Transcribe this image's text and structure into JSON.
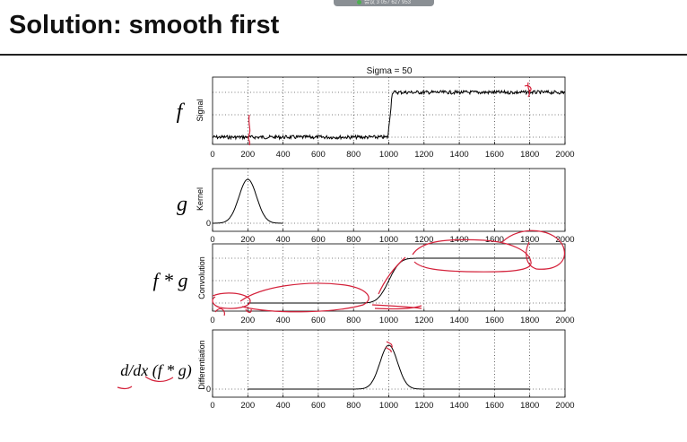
{
  "slide": {
    "title": "Solution: smooth first",
    "overlay_text": "会议 3 057 627 953"
  },
  "chart_data": [
    {
      "type": "line",
      "title": "Sigma = 50",
      "left_label": "f",
      "ylabel": "Signal",
      "xlim": [
        0,
        2000
      ],
      "x_ticks": [
        0,
        200,
        400,
        600,
        800,
        1000,
        1200,
        1400,
        1600,
        1800,
        2000
      ],
      "y_ticks": [],
      "series": [
        {
          "description": "noisy step",
          "x": [
            0,
            995,
            1010,
            2000
          ],
          "y": [
            0,
            0,
            1,
            1
          ]
        }
      ]
    },
    {
      "type": "line",
      "left_label": "g",
      "ylabel": "Kernel",
      "xlim": [
        0,
        2000
      ],
      "x_ticks": [
        0,
        200,
        400,
        600,
        800,
        1000,
        1200,
        1400,
        1600,
        1800,
        2000
      ],
      "y_ticks": [
        "0"
      ],
      "series": [
        {
          "description": "gaussian kernel",
          "x": [
            0,
            400
          ],
          "center": 200,
          "sigma": 50
        }
      ]
    },
    {
      "type": "line",
      "left_label": "f * g",
      "ylabel": "Convolution",
      "xlim": [
        0,
        2000
      ],
      "x_ticks": [
        0,
        200,
        400,
        600,
        800,
        1000,
        1200,
        1400,
        1600,
        1800,
        2000
      ],
      "y_ticks": [],
      "series": [
        {
          "description": "smoothed step",
          "x": [
            200,
            1800
          ],
          "edge": 1000,
          "sigma": 50
        }
      ]
    },
    {
      "type": "line",
      "left_label": "d/dx (f * g)",
      "ylabel": "Differentiation",
      "xlim": [
        0,
        2000
      ],
      "x_ticks": [
        0,
        200,
        400,
        600,
        800,
        1000,
        1200,
        1400,
        1600,
        1800,
        2000
      ],
      "y_ticks": [
        "0"
      ],
      "series": [
        {
          "description": "derivative peak",
          "x": [
            200,
            1800
          ],
          "center": 1000,
          "sigma": 50
        }
      ]
    }
  ]
}
